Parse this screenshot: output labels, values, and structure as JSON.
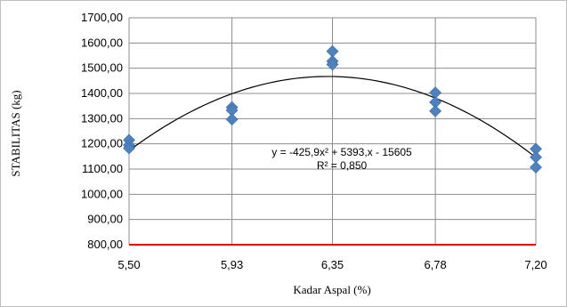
{
  "chart_data": {
    "type": "scatter",
    "title": "",
    "xlabel": "Kadar Aspal (%)",
    "ylabel": "STABILITAS (kg)",
    "xlim": [
      5.5,
      7.2
    ],
    "ylim": [
      800,
      1700
    ],
    "x_ticks": [
      "5,50",
      "5,93",
      "6,35",
      "6,78",
      "7,20"
    ],
    "x_tick_values": [
      5.5,
      5.93,
      6.35,
      6.78,
      7.2
    ],
    "y_ticks": [
      "800,00",
      "900,00",
      "1000,00",
      "1100,00",
      "1200,00",
      "1300,00",
      "1400,00",
      "1500,00",
      "1600,00",
      "1700,00"
    ],
    "y_tick_values": [
      800,
      900,
      1000,
      1100,
      1200,
      1300,
      1400,
      1500,
      1600,
      1700
    ],
    "grid": true,
    "series": [
      {
        "type": "scatter",
        "marker": "diamond",
        "color": "#4f81bd",
        "points": [
          {
            "x": 5.5,
            "y": 1215
          },
          {
            "x": 5.5,
            "y": 1195
          },
          {
            "x": 5.5,
            "y": 1183
          },
          {
            "x": 5.93,
            "y": 1345
          },
          {
            "x": 5.93,
            "y": 1333
          },
          {
            "x": 5.93,
            "y": 1297
          },
          {
            "x": 6.35,
            "y": 1567
          },
          {
            "x": 6.35,
            "y": 1528
          },
          {
            "x": 6.35,
            "y": 1515
          },
          {
            "x": 6.78,
            "y": 1403
          },
          {
            "x": 6.78,
            "y": 1365
          },
          {
            "x": 6.78,
            "y": 1330
          },
          {
            "x": 7.2,
            "y": 1180
          },
          {
            "x": 7.2,
            "y": 1147
          },
          {
            "x": 7.2,
            "y": 1107
          }
        ]
      },
      {
        "type": "trendline",
        "kind": "polynomial-2",
        "color": "#000000",
        "coefficients": {
          "a": -425.9,
          "b": 5393,
          "c": -15605
        }
      }
    ],
    "reference_line": {
      "y": 800,
      "color": "#e00000"
    },
    "annotations": {
      "equation": "y = -425,9x² + 5393,x - 15605",
      "r_squared": "R² = 0,850"
    }
  }
}
